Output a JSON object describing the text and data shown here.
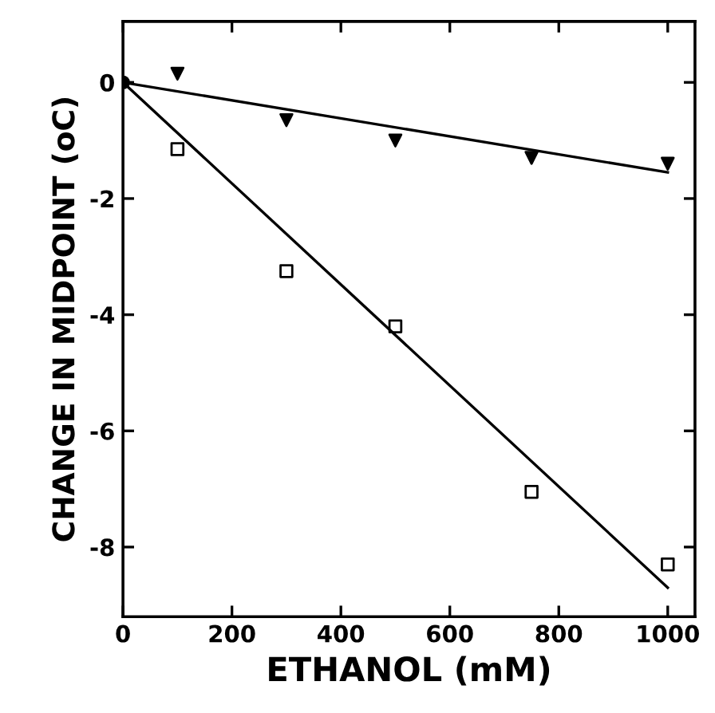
{
  "chart_data": {
    "type": "scatter",
    "xlabel": "ETHANOL (mM)",
    "ylabel": "CHANGE IN MIDPOINT (oC)",
    "xlim": [
      0,
      1050
    ],
    "ylim": [
      -9.2,
      1.05
    ],
    "xticks": [
      0,
      200,
      400,
      600,
      800,
      1000
    ],
    "yticks": [
      0,
      -2,
      -4,
      -6,
      -8
    ],
    "grid": false,
    "legend": false,
    "series": [
      {
        "type": "line",
        "color": "#000000",
        "x": [
          0,
          1000
        ],
        "values": [
          0,
          -1.55
        ],
        "marker": "none",
        "line_style": "solid"
      },
      {
        "type": "line",
        "color": "#000000",
        "x": [
          0,
          1000
        ],
        "values": [
          0,
          -8.7
        ],
        "marker": "none",
        "line_style": "solid"
      },
      {
        "color": "#000000",
        "x": [
          100,
          300,
          500,
          750,
          1000
        ],
        "values": [
          0.15,
          -0.65,
          -1.0,
          -1.3,
          -1.4
        ],
        "marker": "triangle"
      },
      {
        "color": "#000000",
        "x": [
          100,
          300,
          500,
          750,
          1000
        ],
        "values": [
          -1.15,
          -3.25,
          -4.2,
          -7.05,
          -8.3
        ],
        "marker": "square"
      },
      {
        "color": "#000000",
        "x": [
          0
        ],
        "values": [
          0
        ],
        "marker": "circle"
      }
    ]
  }
}
